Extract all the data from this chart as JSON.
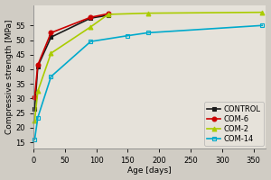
{
  "series": [
    {
      "label": "CONTROL",
      "color": "#1a1a1a",
      "marker": "s",
      "marker_fill": "filled",
      "x": [
        2,
        7,
        28,
        91,
        119
      ],
      "y": [
        26.5,
        41.0,
        51.0,
        57.5,
        58.5
      ]
    },
    {
      "label": "COM-6",
      "color": "#cc0000",
      "marker": "o",
      "marker_fill": "filled",
      "x": [
        2,
        7,
        28,
        91,
        119
      ],
      "y": [
        30.5,
        41.5,
        52.5,
        57.8,
        59.0
      ]
    },
    {
      "label": "COM-2",
      "color": "#aacc00",
      "marker": "^",
      "marker_fill": "filled",
      "x": [
        2,
        7,
        28,
        91,
        119,
        182,
        364
      ],
      "y": [
        22.5,
        32.5,
        45.5,
        54.5,
        58.8,
        59.2,
        59.5
      ]
    },
    {
      "label": "COM-14",
      "color": "#00aacc",
      "marker": "s",
      "marker_fill": "none",
      "x": [
        2,
        7,
        28,
        91,
        150,
        182,
        364
      ],
      "y": [
        16.0,
        23.5,
        37.5,
        49.5,
        51.5,
        52.5,
        55.0
      ]
    }
  ],
  "xlabel": "Age [days]",
  "ylabel": "Compressive strength [MPa]",
  "xlim": [
    0,
    370
  ],
  "ylim": [
    13,
    62
  ],
  "yticks": [
    15,
    20,
    25,
    30,
    35,
    40,
    45,
    50,
    55
  ],
  "xticks": [
    0,
    50,
    100,
    150,
    200,
    250,
    300,
    350
  ],
  "background_color": "#d0ccc4",
  "plot_bg_color": "#e6e2da",
  "legend_loc": "lower right",
  "fontsize": 6.5,
  "linewidth": 1.2,
  "markersize": 3.5
}
